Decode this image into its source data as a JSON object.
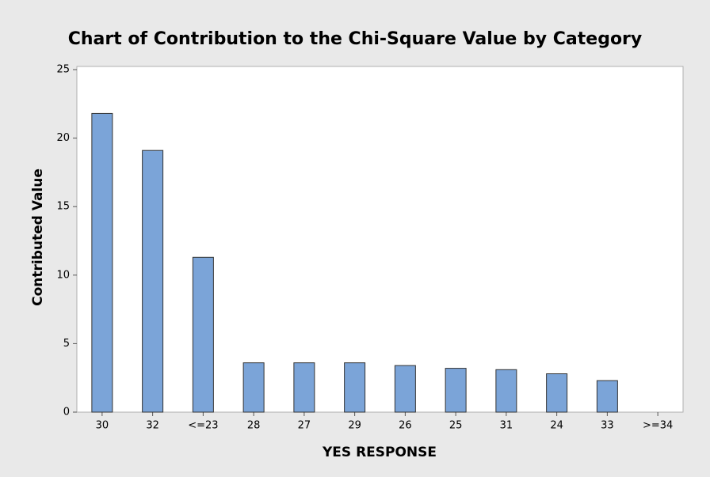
{
  "chart_data": {
    "type": "bar",
    "title": "Chart of Contribution to the Chi-Square Value by Category",
    "x_label": "YES RESPONSE",
    "y_label": "Contributed Value",
    "categories": [
      "30",
      "32",
      "<=23",
      "28",
      "27",
      "29",
      "26",
      "25",
      "31",
      "24",
      "33",
      ">=34"
    ],
    "values": [
      21.8,
      19.1,
      11.3,
      3.6,
      3.6,
      3.6,
      3.4,
      3.2,
      3.1,
      2.8,
      2.3,
      0
    ],
    "color": "#7ba4d8",
    "ylim": [
      0,
      25
    ],
    "yticks": [
      0,
      5,
      10,
      15,
      20,
      25
    ]
  }
}
